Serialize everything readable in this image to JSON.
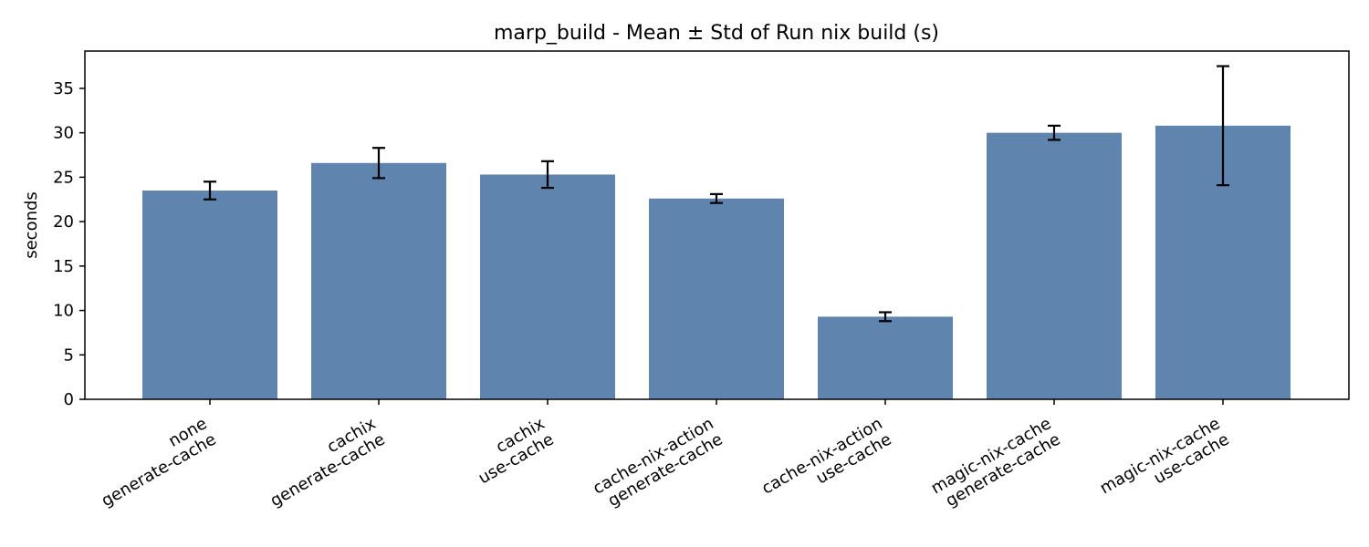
{
  "chart_data": {
    "type": "bar",
    "title": "marp_build - Mean ± Std of Run nix build (s)",
    "xlabel": "",
    "ylabel": "seconds",
    "ylim": [
      0,
      39.2
    ],
    "yticks": [
      0,
      5,
      10,
      15,
      20,
      25,
      30,
      35
    ],
    "grid": false,
    "legend": "none",
    "bar_color": "#5f84ae",
    "errorbar_color": "#000000",
    "categories": [
      [
        "none",
        "generate-cache"
      ],
      [
        "cachix",
        "generate-cache"
      ],
      [
        "cachix",
        "use-cache"
      ],
      [
        "cache-nix-action",
        "generate-cache"
      ],
      [
        "cache-nix-action",
        "use-cache"
      ],
      [
        "magic-nix-cache",
        "generate-cache"
      ],
      [
        "magic-nix-cache",
        "use-cache"
      ]
    ],
    "values": [
      23.5,
      26.6,
      25.3,
      22.6,
      9.3,
      30.0,
      30.8
    ],
    "errors": [
      1.0,
      1.7,
      1.5,
      0.5,
      0.5,
      0.8,
      6.7
    ]
  }
}
